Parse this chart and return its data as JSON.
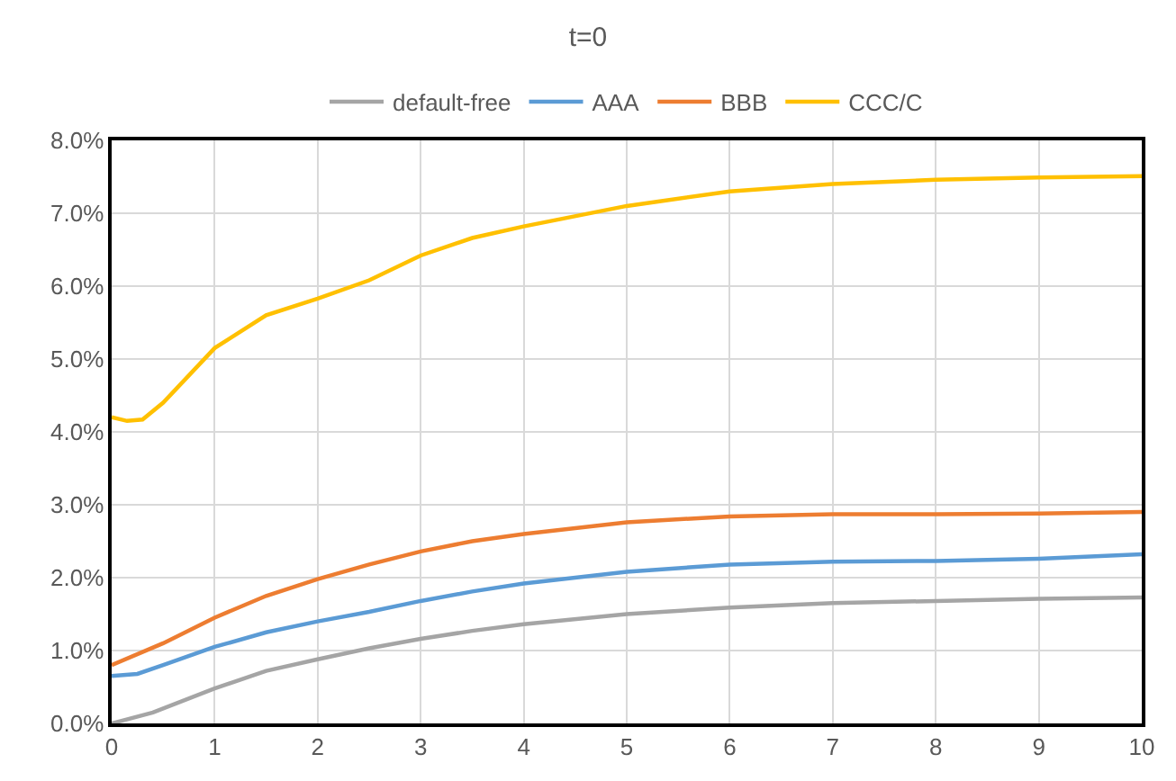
{
  "chart_data": {
    "type": "line",
    "title": "t=0",
    "xlim": [
      0,
      10
    ],
    "xticks": [
      0,
      1,
      2,
      3,
      4,
      5,
      6,
      7,
      8,
      9,
      10
    ],
    "ylim": [
      0,
      8
    ],
    "yticks": [
      {
        "value": 0,
        "label": "0.0%"
      },
      {
        "value": 1,
        "label": "1.0%"
      },
      {
        "value": 2,
        "label": "2.0%"
      },
      {
        "value": 3,
        "label": "3.0%"
      },
      {
        "value": 4,
        "label": "4.0%"
      },
      {
        "value": 5,
        "label": "5.0%"
      },
      {
        "value": 6,
        "label": "6.0%"
      },
      {
        "value": 7,
        "label": "7.0%"
      },
      {
        "value": 8,
        "label": "8.0%"
      }
    ],
    "grid": true,
    "legend": "top",
    "marker": "none",
    "line_style": "solid",
    "series": [
      {
        "name": "default-free",
        "color": "#a5a5a5",
        "x": [
          0,
          0.4,
          1,
          1.5,
          2,
          2.5,
          3,
          3.5,
          4,
          5,
          6,
          7,
          8,
          9,
          10
        ],
        "values": [
          0,
          0.15,
          0.48,
          0.72,
          0.88,
          1.03,
          1.16,
          1.27,
          1.36,
          1.5,
          1.59,
          1.65,
          1.68,
          1.71,
          1.73
        ]
      },
      {
        "name": "AAA",
        "color": "#5b9bd5",
        "x": [
          0,
          0.25,
          0.5,
          1,
          1.5,
          2,
          2.5,
          3,
          3.5,
          4,
          5,
          6,
          7,
          8,
          9,
          10
        ],
        "values": [
          0.65,
          0.68,
          0.8,
          1.05,
          1.25,
          1.4,
          1.53,
          1.68,
          1.81,
          1.92,
          2.08,
          2.18,
          2.22,
          2.23,
          2.26,
          2.32
        ]
      },
      {
        "name": "BBB",
        "color": "#ed7d31",
        "x": [
          0,
          0.5,
          1,
          1.5,
          2,
          2.5,
          3,
          3.5,
          4,
          5,
          6,
          7,
          8,
          9,
          10
        ],
        "values": [
          0.8,
          1.1,
          1.45,
          1.75,
          1.98,
          2.18,
          2.36,
          2.5,
          2.6,
          2.76,
          2.84,
          2.87,
          2.87,
          2.88,
          2.9
        ]
      },
      {
        "name": "CCC/C",
        "color": "#ffc000",
        "x": [
          0,
          0.15,
          0.3,
          0.5,
          1,
          1.5,
          2,
          2.5,
          3,
          3.5,
          4,
          5,
          6,
          7,
          8,
          9,
          10
        ],
        "values": [
          4.2,
          4.15,
          4.17,
          4.4,
          5.15,
          5.6,
          5.83,
          6.08,
          6.42,
          6.66,
          6.82,
          7.1,
          7.3,
          7.4,
          7.46,
          7.49,
          7.51
        ]
      }
    ]
  }
}
